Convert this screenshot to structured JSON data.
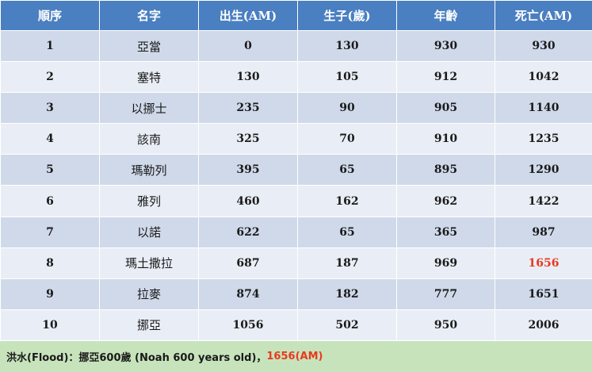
{
  "table": {
    "headers": [
      "順序",
      "名字",
      "出生(AM)",
      "生子(歲)",
      "年齡",
      "死亡(AM)"
    ],
    "rows": [
      {
        "order": "1",
        "name": "亞當",
        "birth": "0",
        "begat": "130",
        "age": "930",
        "death": "930"
      },
      {
        "order": "2",
        "name": "塞特",
        "birth": "130",
        "begat": "105",
        "age": "912",
        "death": "1042"
      },
      {
        "order": "3",
        "name": "以挪士",
        "birth": "235",
        "begat": "90",
        "age": "905",
        "death": "1140"
      },
      {
        "order": "4",
        "name": "該南",
        "birth": "325",
        "begat": "70",
        "age": "910",
        "death": "1235"
      },
      {
        "order": "5",
        "name": "瑪勒列",
        "birth": "395",
        "begat": "65",
        "age": "895",
        "death": "1290"
      },
      {
        "order": "6",
        "name": "雅列",
        "birth": "460",
        "begat": "162",
        "age": "962",
        "death": "1422"
      },
      {
        "order": "7",
        "name": "以諾",
        "birth": "622",
        "begat": "65",
        "age": "365",
        "death": "987"
      },
      {
        "order": "8",
        "name": "瑪土撒拉",
        "birth": "687",
        "begat": "187",
        "age": "969",
        "death": "1656"
      },
      {
        "order": "9",
        "name": "拉麥",
        "birth": "874",
        "begat": "182",
        "age": "777",
        "death": "1651"
      },
      {
        "order": "10",
        "name": "挪亞",
        "birth": "1056",
        "begat": "502",
        "age": "950",
        "death": "2006"
      }
    ]
  },
  "footer": {
    "text": "洪水(Flood)：挪亞600歲 (Noah 600 years old)，",
    "highlight": "1656(AM)"
  },
  "colors": {
    "header_bg": "#4a7fc1",
    "row_dark": "#cfd9ea",
    "row_light": "#e9eef6",
    "footer_bg": "#c7e3bc",
    "highlight": "#e8391e"
  }
}
